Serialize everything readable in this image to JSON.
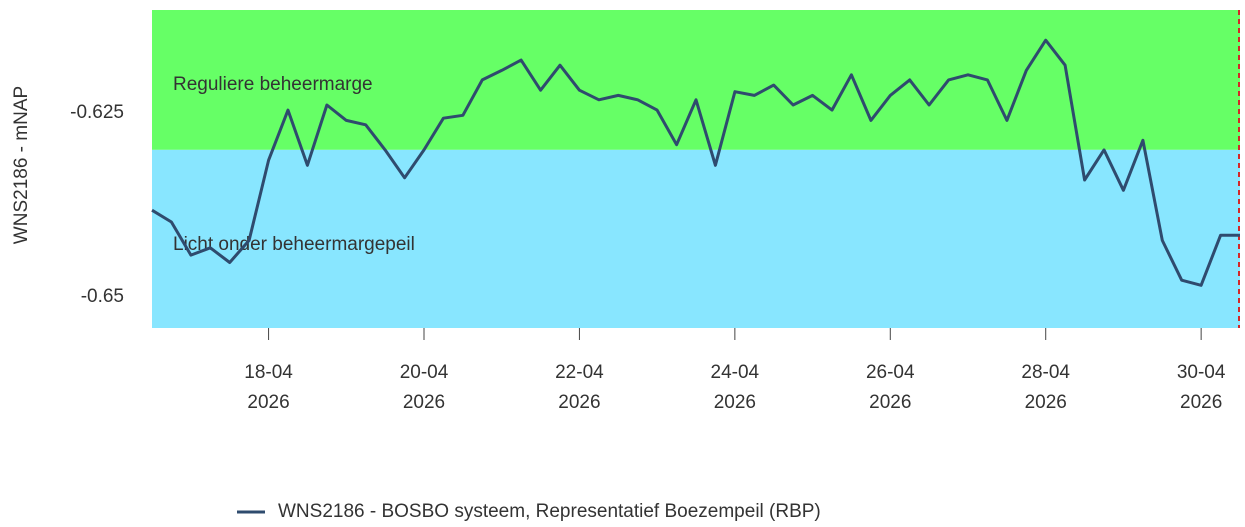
{
  "chart_data": {
    "type": "line",
    "ylabel": "WNS2186 - mNAP",
    "x": [
      "2026-04-16T12:00",
      "2026-04-16T18:00",
      "2026-04-17T00:00",
      "2026-04-17T06:00",
      "2026-04-17T12:00",
      "2026-04-17T18:00",
      "2026-04-18T00:00",
      "2026-04-18T06:00",
      "2026-04-18T12:00",
      "2026-04-18T18:00",
      "2026-04-19T00:00",
      "2026-04-19T06:00",
      "2026-04-19T12:00",
      "2026-04-19T18:00",
      "2026-04-20T00:00",
      "2026-04-20T06:00",
      "2026-04-20T12:00",
      "2026-04-20T18:00",
      "2026-04-21T00:00",
      "2026-04-21T06:00",
      "2026-04-21T12:00",
      "2026-04-21T18:00",
      "2026-04-22T00:00",
      "2026-04-22T06:00",
      "2026-04-22T12:00",
      "2026-04-22T18:00",
      "2026-04-23T00:00",
      "2026-04-23T06:00",
      "2026-04-23T12:00",
      "2026-04-23T18:00",
      "2026-04-24T00:00",
      "2026-04-24T06:00",
      "2026-04-24T12:00",
      "2026-04-24T18:00",
      "2026-04-25T00:00",
      "2026-04-25T06:00",
      "2026-04-25T12:00",
      "2026-04-25T18:00",
      "2026-04-26T00:00",
      "2026-04-26T06:00",
      "2026-04-26T12:00",
      "2026-04-26T18:00",
      "2026-04-27T00:00",
      "2026-04-27T06:00",
      "2026-04-27T12:00",
      "2026-04-27T18:00",
      "2026-04-28T00:00",
      "2026-04-28T06:00",
      "2026-04-28T12:00",
      "2026-04-28T18:00",
      "2026-04-29T00:00",
      "2026-04-29T06:00",
      "2026-04-29T12:00",
      "2026-04-29T18:00",
      "2026-04-30T00:00",
      "2026-04-30T06:00",
      "2026-04-30T12:00"
    ],
    "series": [
      {
        "name": "WNS2186 - BOSBO systeem, Representatief Boezempeil (RBP)",
        "color": "#2f4b6e",
        "values": [
          -0.6382,
          -0.6398,
          -0.6443,
          -0.6433,
          -0.6453,
          -0.6423,
          -0.6314,
          -0.6246,
          -0.6321,
          -0.6239,
          -0.626,
          -0.6266,
          -0.63,
          -0.6338,
          -0.63,
          -0.6257,
          -0.6253,
          -0.6205,
          -0.6192,
          -0.6178,
          -0.6219,
          -0.6185,
          -0.6219,
          -0.6232,
          -0.6226,
          -0.6232,
          -0.6246,
          -0.6293,
          -0.6232,
          -0.6321,
          -0.6221,
          -0.6226,
          -0.6212,
          -0.6239,
          -0.6226,
          -0.6246,
          -0.6198,
          -0.626,
          -0.6226,
          -0.6205,
          -0.6239,
          -0.6205,
          -0.6198,
          -0.6205,
          -0.626,
          -0.6192,
          -0.6151,
          -0.6185,
          -0.6341,
          -0.63,
          -0.6355,
          -0.6287,
          -0.6423,
          -0.6477,
          -0.6484,
          -0.6416,
          -0.6416
        ]
      }
    ],
    "bands": [
      {
        "label": "Reguliere beheermarge",
        "from": -0.63,
        "to": -0.611,
        "color": "#66ff66"
      },
      {
        "label": "Licht onder beheermargepeil",
        "from": -0.6542,
        "to": -0.63,
        "color": "#88e6ff"
      }
    ],
    "now_line": {
      "x": "2026-04-30T12:00",
      "color": "#d62728"
    },
    "xlim": [
      "2026-04-16T12:00",
      "2026-04-30T12:00"
    ],
    "xticks": [
      {
        "value": "2026-04-18T00:00",
        "label": "18-04\n2026"
      },
      {
        "value": "2026-04-20T00:00",
        "label": "20-04\n2026"
      },
      {
        "value": "2026-04-22T00:00",
        "label": "22-04\n2026"
      },
      {
        "value": "2026-04-24T00:00",
        "label": "24-04\n2026"
      },
      {
        "value": "2026-04-26T00:00",
        "label": "26-04\n2026"
      },
      {
        "value": "2026-04-28T00:00",
        "label": "28-04\n2026"
      },
      {
        "value": "2026-04-30T00:00",
        "label": "30-04\n2026"
      }
    ],
    "ylim": [
      -0.6542,
      -0.611
    ],
    "yticks": [
      -0.625,
      -0.65
    ],
    "legend": "bottom"
  }
}
